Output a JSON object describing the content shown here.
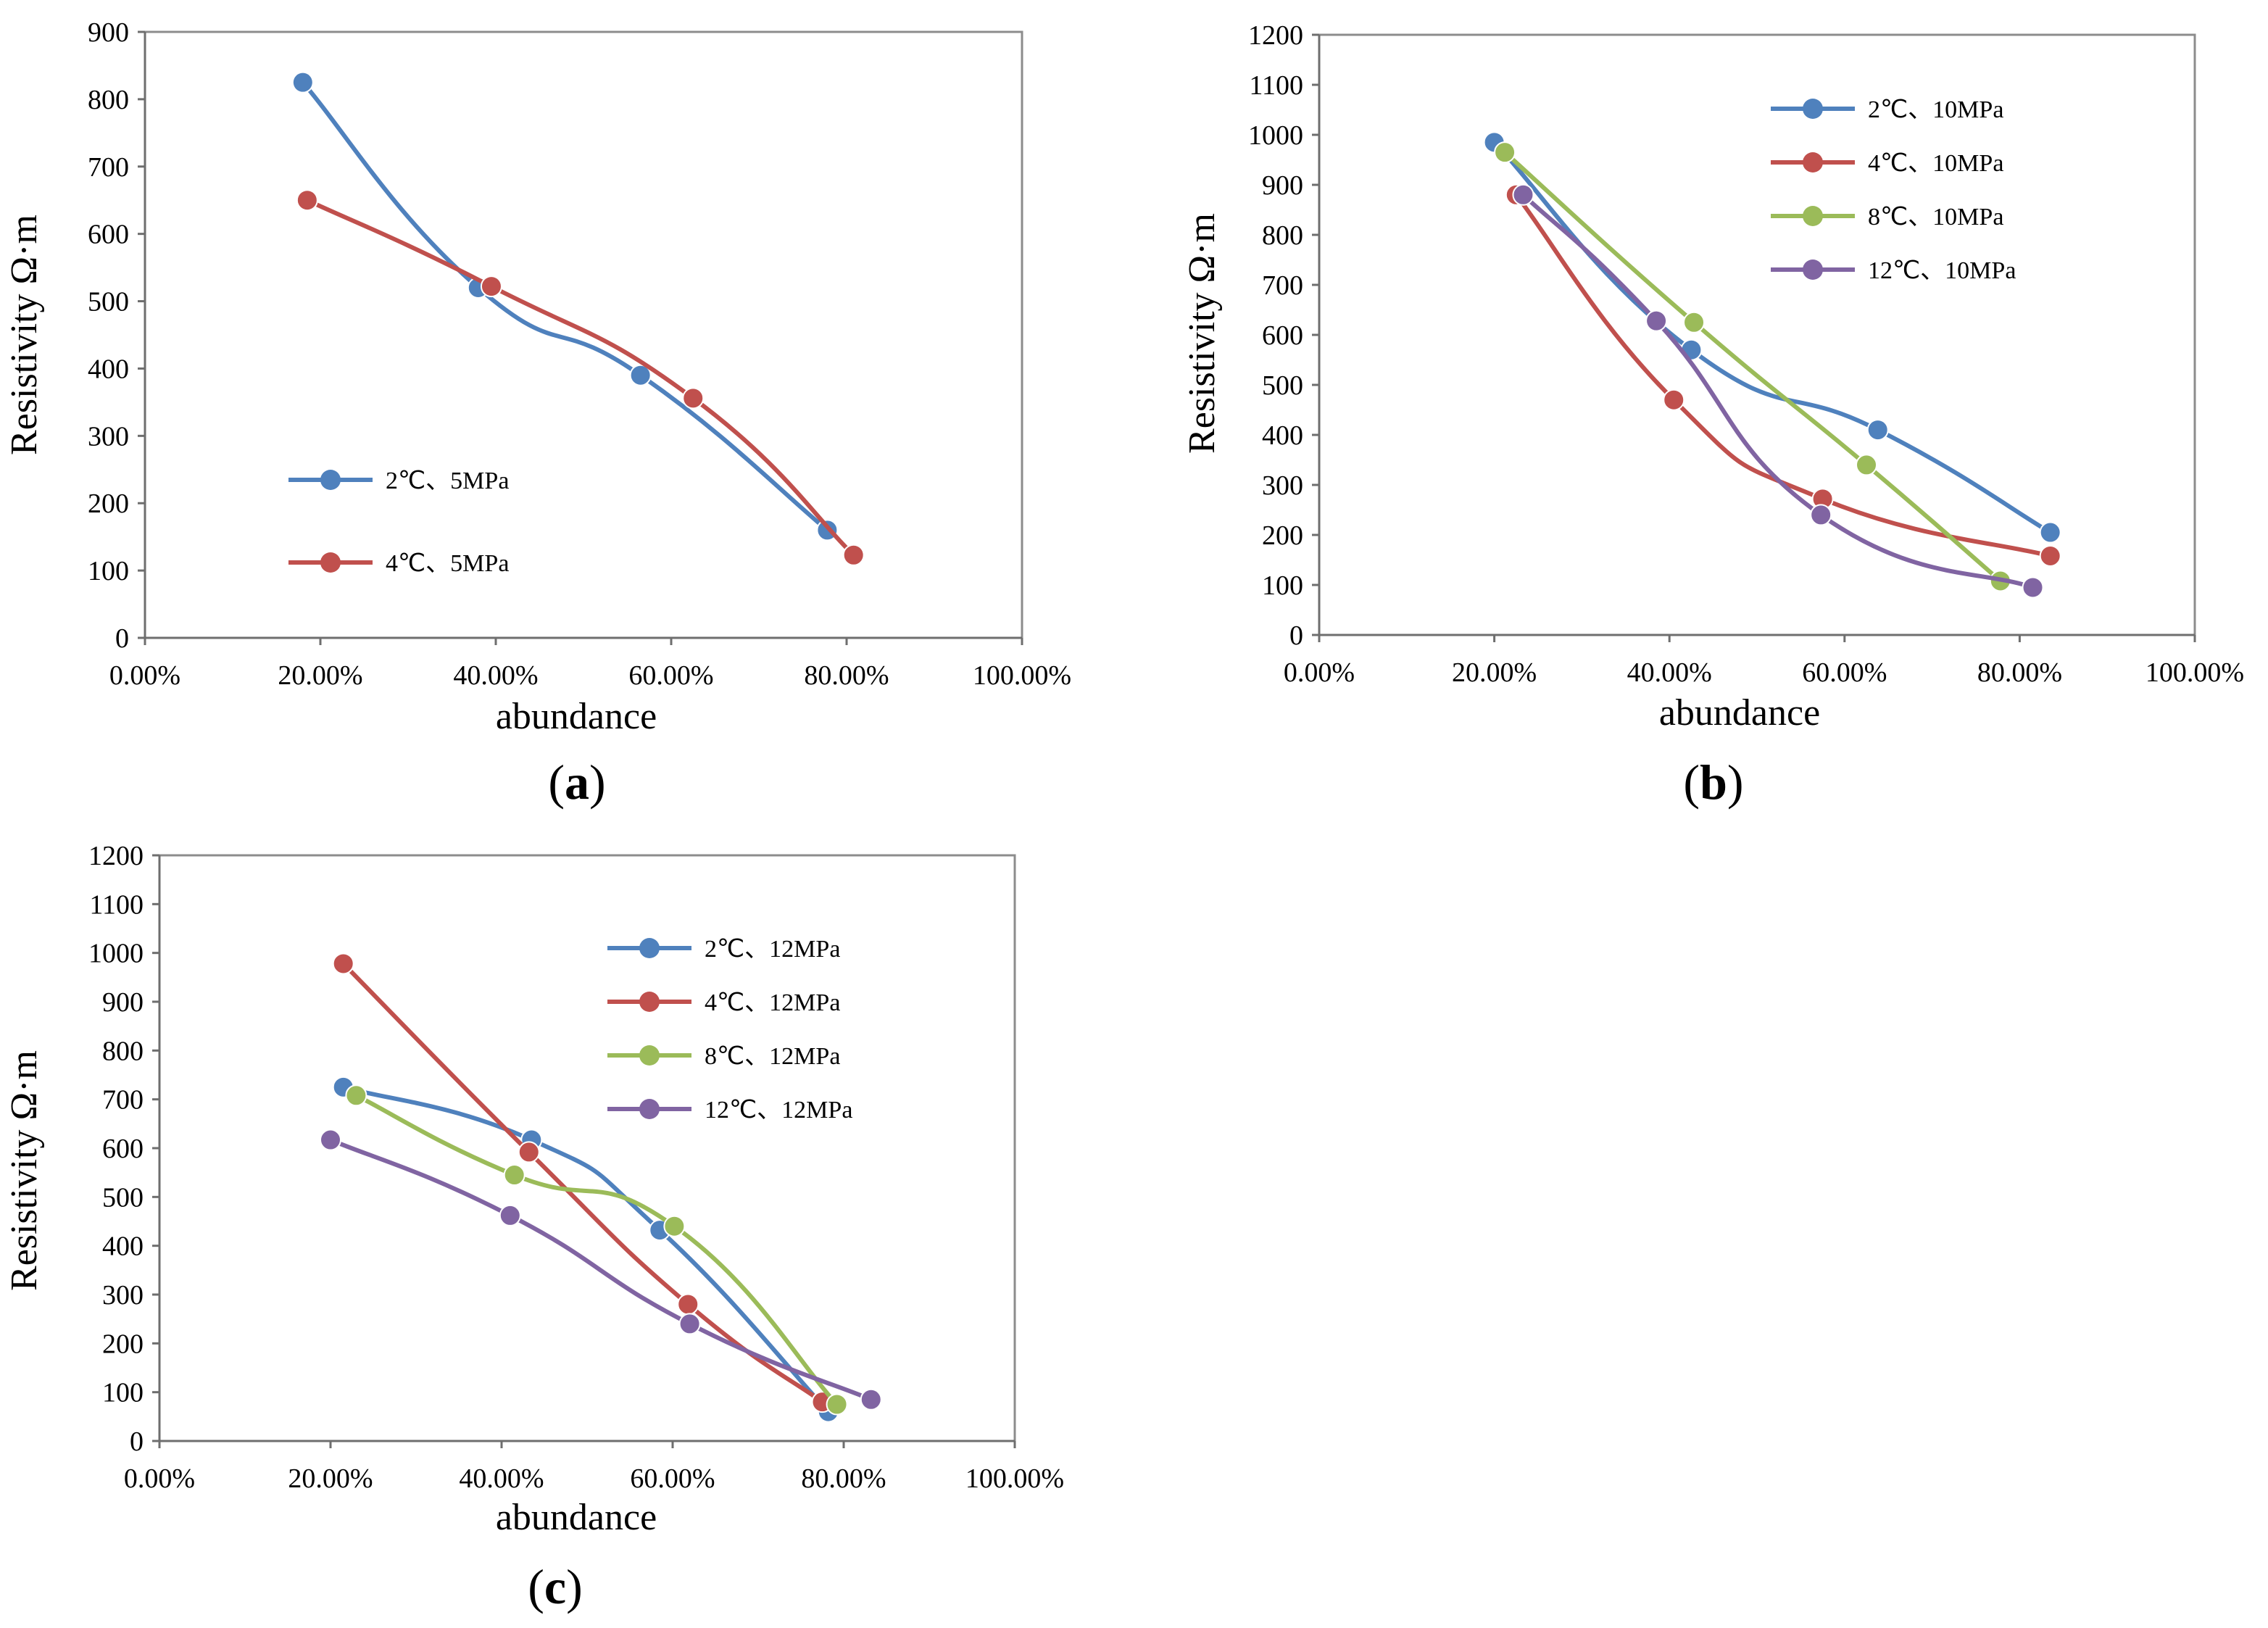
{
  "chart_data": [
    {
      "id": "a",
      "type": "line",
      "caption_letter": "a",
      "xlabel": "abundance",
      "ylabel": "Resistivity Ω·m",
      "xlim": [
        0,
        100
      ],
      "ylim": [
        0,
        900
      ],
      "xticks": [
        0,
        20,
        40,
        60,
        80,
        100
      ],
      "xtick_labels": [
        "0.00%",
        "20.00%",
        "40.00%",
        "60.00%",
        "80.00%",
        "100.00%"
      ],
      "yticks": [
        0,
        100,
        200,
        300,
        400,
        500,
        600,
        700,
        800,
        900
      ],
      "ytick_labels": [
        "0",
        "100",
        "200",
        "300",
        "400",
        "500",
        "600",
        "700",
        "800",
        "900"
      ],
      "legend_position": "middle-left",
      "series": [
        {
          "name": "2℃、5MPa",
          "color": "#4f81bd",
          "x": [
            18,
            38,
            56.5,
            77.8
          ],
          "y": [
            825,
            520,
            390,
            160
          ]
        },
        {
          "name": "4℃、5MPa",
          "color": "#c0504d",
          "x": [
            18.5,
            39.5,
            62.5,
            80.8
          ],
          "y": [
            650,
            522,
            356,
            123
          ]
        }
      ]
    },
    {
      "id": "b",
      "type": "line",
      "caption_letter": "b",
      "xlabel": "abundance",
      "ylabel": "Resistivity Ω·m",
      "xlim": [
        0,
        100
      ],
      "ylim": [
        0,
        1200
      ],
      "xticks": [
        0,
        20,
        40,
        60,
        80,
        100
      ],
      "xtick_labels": [
        "0.00%",
        "20.00%",
        "40.00%",
        "60.00%",
        "80.00%",
        "100.00%"
      ],
      "yticks": [
        0,
        100,
        200,
        300,
        400,
        500,
        600,
        700,
        800,
        900,
        1000,
        1100,
        1200
      ],
      "ytick_labels": [
        "0",
        "100",
        "200",
        "300",
        "400",
        "500",
        "600",
        "700",
        "800",
        "900",
        "1000",
        "1100",
        "1200"
      ],
      "legend_position": "top-right",
      "series": [
        {
          "name": "2℃、10MPa",
          "color": "#4f81bd",
          "x": [
            20,
            42.5,
            63.8,
            83.5
          ],
          "y": [
            985,
            570,
            410,
            205
          ]
        },
        {
          "name": "4℃、10MPa",
          "color": "#c0504d",
          "x": [
            22.5,
            40.5,
            57.5,
            83.5
          ],
          "y": [
            880,
            470,
            272,
            158
          ]
        },
        {
          "name": "8℃、10MPa",
          "color": "#9bbb59",
          "x": [
            21.2,
            42.8,
            62.5,
            77.8
          ],
          "y": [
            965,
            625,
            340,
            108
          ]
        },
        {
          "name": "12℃、10MPa",
          "color": "#8064a2",
          "x": [
            23.3,
            38.5,
            57.3,
            81.5
          ],
          "y": [
            880,
            628,
            240,
            95
          ]
        }
      ]
    },
    {
      "id": "c",
      "type": "line",
      "caption_letter": "c",
      "xlabel": "abundance",
      "ylabel": "Resistivity Ω·m",
      "xlim": [
        0,
        100
      ],
      "ylim": [
        0,
        1200
      ],
      "xticks": [
        0,
        20,
        40,
        60,
        80,
        100
      ],
      "xtick_labels": [
        "0.00%",
        "20.00%",
        "40.00%",
        "60.00%",
        "80.00%",
        "100.00%"
      ],
      "yticks": [
        0,
        100,
        200,
        300,
        400,
        500,
        600,
        700,
        800,
        900,
        1000,
        1100,
        1200
      ],
      "ytick_labels": [
        "0",
        "100",
        "200",
        "300",
        "400",
        "500",
        "600",
        "700",
        "800",
        "900",
        "1000",
        "1100",
        "1200"
      ],
      "legend_position": "top-right",
      "series": [
        {
          "name": "2℃、12MPa",
          "color": "#4f81bd",
          "x": [
            21.5,
            43.5,
            58.5,
            78.2
          ],
          "y": [
            725,
            617,
            432,
            60
          ]
        },
        {
          "name": "4℃、12MPa",
          "color": "#c0504d",
          "x": [
            21.5,
            43.2,
            61.8,
            77.5
          ],
          "y": [
            978,
            592,
            280,
            80
          ]
        },
        {
          "name": "8℃、12MPa",
          "color": "#9bbb59",
          "x": [
            23,
            41.5,
            60.2,
            79.2
          ],
          "y": [
            708,
            545,
            440,
            75
          ]
        },
        {
          "name": "12℃、12MPa",
          "color": "#8064a2",
          "x": [
            20,
            41,
            62,
            83.2
          ],
          "y": [
            617,
            462,
            240,
            85
          ]
        }
      ]
    }
  ]
}
